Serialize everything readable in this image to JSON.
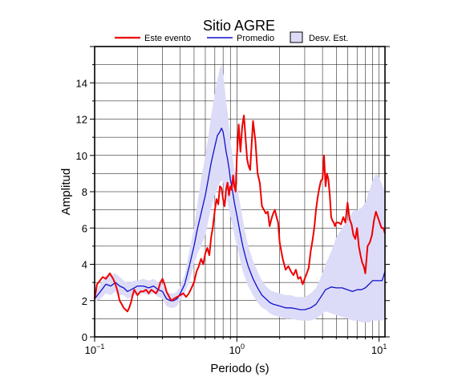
{
  "chart_data": {
    "type": "line",
    "title": "Sitio AGRE",
    "xlabel": "Periodo (s)",
    "ylabel": "Amplitud",
    "xscale": "log",
    "xlim": [
      0.1,
      11
    ],
    "ylim": [
      0,
      16
    ],
    "grid": true,
    "legend_position": "top",
    "x_tick_labels": [
      {
        "value": 0.1,
        "base": "10",
        "exp": "−1"
      },
      {
        "value": 1,
        "base": "10",
        "exp": "0"
      },
      {
        "value": 10,
        "base": "10",
        "exp": "1"
      }
    ],
    "y_ticks": [
      0,
      2,
      4,
      6,
      8,
      10,
      12,
      14
    ],
    "series": [
      {
        "name": "Este evento",
        "color": "#ee0000",
        "x": [
          0.1,
          0.104,
          0.109,
          0.114,
          0.12,
          0.128,
          0.135,
          0.14,
          0.145,
          0.15,
          0.155,
          0.16,
          0.165,
          0.17,
          0.175,
          0.18,
          0.185,
          0.19,
          0.2,
          0.21,
          0.22,
          0.23,
          0.24,
          0.25,
          0.26,
          0.27,
          0.28,
          0.29,
          0.3,
          0.31,
          0.32,
          0.33,
          0.34,
          0.35,
          0.36,
          0.38,
          0.4,
          0.42,
          0.44,
          0.46,
          0.48,
          0.5,
          0.52,
          0.54,
          0.56,
          0.58,
          0.6,
          0.62,
          0.64,
          0.66,
          0.68,
          0.7,
          0.72,
          0.74,
          0.76,
          0.78,
          0.8,
          0.82,
          0.84,
          0.86,
          0.88,
          0.9,
          0.92,
          0.94,
          0.96,
          0.98,
          1.0,
          1.03,
          1.06,
          1.09,
          1.12,
          1.15,
          1.18,
          1.21,
          1.24,
          1.27,
          1.3,
          1.35,
          1.4,
          1.45,
          1.5,
          1.55,
          1.6,
          1.65,
          1.7,
          1.75,
          1.8,
          1.85,
          1.9,
          1.95,
          2.0,
          2.1,
          2.2,
          2.3,
          2.4,
          2.5,
          2.6,
          2.7,
          2.8,
          2.9,
          3.0,
          3.1,
          3.2,
          3.3,
          3.4,
          3.5,
          3.6,
          3.7,
          3.8,
          3.9,
          4.0,
          4.1,
          4.2,
          4.3,
          4.4,
          4.5,
          4.6,
          4.7,
          4.8,
          4.9,
          5.0,
          5.2,
          5.4,
          5.6,
          5.8,
          6.0,
          6.2,
          6.4,
          6.6,
          6.8,
          7.0,
          7.2,
          7.4,
          7.6,
          7.8,
          8.0,
          8.3,
          8.6,
          8.9,
          9.2,
          9.5,
          9.8,
          10.1,
          10.4,
          10.7,
          11.0
        ],
        "values": [
          2.1,
          2.9,
          3.1,
          3.3,
          3.2,
          3.5,
          3.2,
          2.9,
          2.5,
          2.0,
          1.8,
          1.6,
          1.5,
          1.4,
          1.6,
          1.9,
          2.3,
          2.6,
          2.3,
          2.5,
          2.5,
          2.6,
          2.4,
          2.6,
          2.5,
          2.4,
          2.6,
          3.0,
          3.2,
          2.9,
          2.5,
          2.3,
          2.1,
          2.0,
          2.1,
          2.2,
          2.3,
          2.4,
          2.2,
          2.4,
          2.7,
          3.0,
          3.6,
          3.9,
          4.3,
          4.0,
          4.6,
          4.9,
          4.5,
          5.5,
          6.1,
          7.0,
          7.6,
          7.3,
          8.3,
          8.2,
          7.6,
          7.2,
          8.1,
          8.5,
          7.8,
          8.3,
          8.1,
          8.9,
          8.3,
          8.0,
          9.9,
          11.7,
          10.2,
          11.6,
          12.2,
          11.0,
          9.8,
          9.4,
          9.2,
          10.6,
          11.9,
          10.8,
          9.0,
          8.5,
          7.2,
          7.0,
          6.8,
          6.9,
          6.1,
          6.5,
          6.8,
          7.0,
          6.6,
          6.3,
          5.2,
          4.3,
          3.7,
          3.9,
          3.6,
          3.4,
          3.7,
          3.2,
          3.3,
          2.9,
          3.2,
          3.5,
          3.8,
          4.7,
          5.3,
          6.0,
          7.0,
          7.7,
          8.2,
          8.6,
          8.7,
          10.0,
          8.3,
          9.0,
          8.7,
          7.8,
          6.6,
          6.4,
          6.3,
          6.1,
          6.3,
          6.3,
          6.2,
          6.6,
          6.3,
          7.4,
          6.5,
          6.2,
          5.6,
          5.4,
          6.0,
          5.0,
          4.5,
          4.1,
          3.9,
          3.5,
          5.0,
          5.2,
          5.6,
          6.4,
          6.9,
          6.6,
          6.3,
          6.0,
          6.0,
          5.7
        ]
      },
      {
        "name": "Promedio",
        "color": "#1010cc",
        "x": [
          0.1,
          0.11,
          0.12,
          0.13,
          0.14,
          0.15,
          0.16,
          0.17,
          0.18,
          0.19,
          0.2,
          0.22,
          0.24,
          0.26,
          0.28,
          0.3,
          0.32,
          0.34,
          0.36,
          0.38,
          0.4,
          0.43,
          0.46,
          0.5,
          0.53,
          0.56,
          0.6,
          0.63,
          0.66,
          0.7,
          0.73,
          0.76,
          0.78,
          0.8,
          0.82,
          0.84,
          0.86,
          0.88,
          0.9,
          0.93,
          0.96,
          1.0,
          1.05,
          1.1,
          1.15,
          1.2,
          1.3,
          1.4,
          1.5,
          1.6,
          1.7,
          1.8,
          2.0,
          2.2,
          2.4,
          2.6,
          2.8,
          3.0,
          3.3,
          3.6,
          3.9,
          4.2,
          4.6,
          5.0,
          5.5,
          6.0,
          6.5,
          7.0,
          7.5,
          8.0,
          8.5,
          9.0,
          9.5,
          10.0,
          10.5,
          11.0
        ],
        "values": [
          2.1,
          2.5,
          2.9,
          2.8,
          3.0,
          2.8,
          2.7,
          2.5,
          2.6,
          2.7,
          2.8,
          2.8,
          2.7,
          2.8,
          2.6,
          2.5,
          2.1,
          2.0,
          2.0,
          2.1,
          2.4,
          2.9,
          3.8,
          5.0,
          6.0,
          6.8,
          7.8,
          8.7,
          9.6,
          10.5,
          11.1,
          11.3,
          11.5,
          11.3,
          10.8,
          10.2,
          9.8,
          9.3,
          8.7,
          8.1,
          7.4,
          6.7,
          5.8,
          5.0,
          4.4,
          3.9,
          3.2,
          2.7,
          2.3,
          2.1,
          1.9,
          1.8,
          1.7,
          1.6,
          1.6,
          1.55,
          1.5,
          1.5,
          1.6,
          1.8,
          2.2,
          2.6,
          2.75,
          2.7,
          2.7,
          2.6,
          2.5,
          2.6,
          2.6,
          2.7,
          2.9,
          3.1,
          3.1,
          3.1,
          3.1,
          3.6
        ]
      }
    ],
    "band": {
      "name": "Desv. Est.",
      "fill": "#dcdcf8",
      "x": [
        0.1,
        0.11,
        0.12,
        0.13,
        0.14,
        0.15,
        0.16,
        0.17,
        0.18,
        0.19,
        0.2,
        0.22,
        0.24,
        0.26,
        0.28,
        0.3,
        0.32,
        0.34,
        0.36,
        0.38,
        0.4,
        0.43,
        0.46,
        0.5,
        0.53,
        0.56,
        0.6,
        0.63,
        0.66,
        0.7,
        0.73,
        0.76,
        0.78,
        0.8,
        0.82,
        0.84,
        0.86,
        0.88,
        0.9,
        0.93,
        0.96,
        1.0,
        1.05,
        1.1,
        1.15,
        1.2,
        1.3,
        1.4,
        1.5,
        1.6,
        1.7,
        1.8,
        2.0,
        2.2,
        2.4,
        2.6,
        2.8,
        3.0,
        3.3,
        3.6,
        3.9,
        4.2,
        4.6,
        5.0,
        5.5,
        6.0,
        6.5,
        7.0,
        7.5,
        8.0,
        8.5,
        9.0,
        9.5,
        10.0,
        10.5,
        11.0
      ],
      "upper": [
        2.3,
        2.9,
        3.4,
        3.4,
        3.5,
        3.3,
        3.1,
        3.0,
        3.0,
        3.1,
        3.1,
        3.2,
        3.1,
        3.2,
        3.0,
        2.9,
        2.5,
        2.4,
        2.4,
        2.5,
        2.8,
        3.4,
        4.6,
        6.0,
        7.4,
        8.7,
        10.0,
        11.0,
        12.2,
        13.4,
        14.2,
        14.8,
        15.0,
        14.5,
        13.8,
        13.0,
        12.4,
        11.6,
        10.9,
        10.0,
        9.2,
        8.4,
        7.4,
        6.5,
        5.7,
        5.0,
        4.2,
        3.6,
        3.1,
        2.8,
        2.6,
        2.5,
        2.4,
        2.3,
        2.3,
        2.2,
        2.2,
        2.2,
        2.4,
        2.7,
        3.3,
        4.0,
        4.7,
        5.5,
        6.0,
        6.4,
        6.9,
        7.0,
        7.1,
        7.4,
        8.0,
        8.6,
        9.0,
        8.8,
        8.4,
        8.0
      ],
      "lower": [
        1.9,
        2.1,
        2.4,
        2.3,
        2.5,
        2.3,
        2.3,
        2.1,
        2.2,
        2.3,
        2.4,
        2.4,
        2.3,
        2.4,
        2.2,
        2.1,
        1.7,
        1.6,
        1.6,
        1.7,
        2.0,
        2.4,
        3.0,
        4.0,
        4.6,
        5.0,
        5.6,
        6.4,
        7.1,
        7.8,
        8.2,
        8.5,
        8.6,
        8.5,
        8.2,
        7.7,
        7.4,
        7.0,
        6.6,
        6.2,
        5.6,
        5.0,
        4.3,
        3.6,
        3.2,
        2.8,
        2.3,
        1.9,
        1.6,
        1.5,
        1.3,
        1.2,
        1.1,
        1.0,
        1.0,
        0.95,
        0.9,
        0.9,
        0.9,
        1.0,
        1.2,
        1.4,
        1.3,
        1.2,
        1.1,
        1.0,
        0.9,
        0.9,
        0.8,
        0.8,
        0.8,
        0.9,
        0.9,
        0.9,
        0.9,
        1.0
      ]
    }
  }
}
